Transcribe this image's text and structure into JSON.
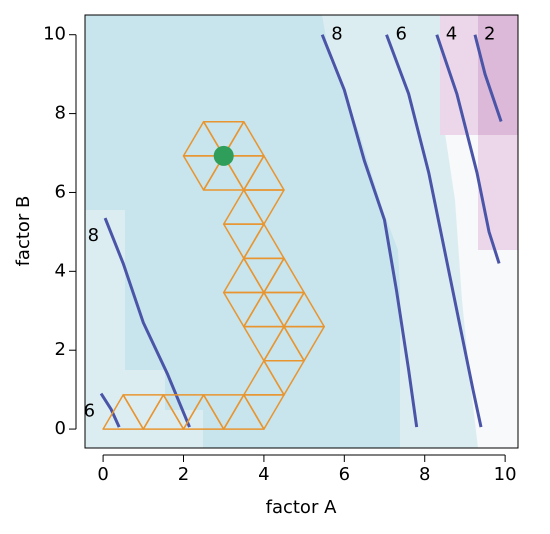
{
  "chart_data": {
    "type": "contour",
    "xlabel": "factor A",
    "ylabel": "factor B",
    "xlim": [
      -0.45,
      10.32
    ],
    "ylim": [
      -0.48,
      10.5
    ],
    "xticks": [
      0,
      2,
      4,
      6,
      8,
      10
    ],
    "yticks": [
      0,
      2,
      4,
      6,
      8,
      10
    ],
    "contour_color": "#4a55a8",
    "contours": [
      {
        "level": 8,
        "x": [
          5.45,
          6.0,
          6.5,
          7.0,
          7.3,
          7.6,
          7.8
        ],
        "y": [
          10,
          8.6,
          6.8,
          5.3,
          3.5,
          1.5,
          0.05
        ]
      },
      {
        "level": 6,
        "x": [
          7.05,
          7.6,
          8.1,
          8.5,
          8.9,
          9.2,
          9.4
        ],
        "y": [
          10,
          8.5,
          6.5,
          4.5,
          2.5,
          1.0,
          0.05
        ]
      },
      {
        "level": 4,
        "x": [
          8.3,
          8.8,
          9.3,
          9.6,
          9.85
        ],
        "y": [
          10,
          8.5,
          6.5,
          5.0,
          4.2
        ]
      },
      {
        "level": 2,
        "x": [
          9.25,
          9.5,
          9.9
        ],
        "y": [
          10,
          9.0,
          7.8
        ]
      },
      {
        "level": 8,
        "x": [
          0.05,
          0.5,
          1.0,
          1.6,
          2.15
        ],
        "y": [
          5.35,
          4.2,
          2.7,
          1.4,
          0.05
        ]
      },
      {
        "level": 6,
        "x": [
          -0.05,
          0.2,
          0.4
        ],
        "y": [
          0.9,
          0.5,
          0.05
        ]
      }
    ],
    "simplex_color": "#e8952f",
    "simplex": [
      {
        "x": [
          0,
          1,
          0.5
        ],
        "y": [
          0,
          0,
          0.866
        ]
      },
      {
        "x": [
          1,
          2,
          1.5
        ],
        "y": [
          0,
          0,
          0.866
        ]
      },
      {
        "x": [
          2,
          3,
          2.5
        ],
        "y": [
          0,
          0,
          0.866
        ]
      },
      {
        "x": [
          3,
          4,
          3.5
        ],
        "y": [
          0,
          0,
          0.866
        ]
      },
      {
        "x": [
          0.5,
          1.5,
          1
        ],
        "y": [
          0.866,
          0.866,
          0
        ]
      },
      {
        "x": [
          1.5,
          2.5,
          2
        ],
        "y": [
          0.866,
          0.866,
          0
        ]
      },
      {
        "x": [
          2.5,
          3.5,
          3
        ],
        "y": [
          0.866,
          0.866,
          0
        ]
      },
      {
        "x": [
          3.5,
          4.5,
          4
        ],
        "y": [
          0.866,
          0.866,
          0
        ]
      },
      {
        "x": [
          3.5,
          4.5,
          4
        ],
        "y": [
          0.866,
          0.866,
          1.732
        ]
      },
      {
        "x": [
          4,
          5,
          4.5
        ],
        "y": [
          1.732,
          1.732,
          0.866
        ]
      },
      {
        "x": [
          4,
          5,
          4.5
        ],
        "y": [
          1.732,
          1.732,
          2.598
        ]
      },
      {
        "x": [
          3.5,
          4.5,
          4
        ],
        "y": [
          2.598,
          2.598,
          1.732
        ]
      },
      {
        "x": [
          4.5,
          5.5,
          5
        ],
        "y": [
          2.598,
          2.598,
          1.732
        ]
      },
      {
        "x": [
          3.5,
          4.5,
          4
        ],
        "y": [
          2.598,
          2.598,
          3.464
        ]
      },
      {
        "x": [
          4.5,
          5.5,
          5
        ],
        "y": [
          2.598,
          2.598,
          3.464
        ]
      },
      {
        "x": [
          3,
          4,
          3.5
        ],
        "y": [
          3.464,
          3.464,
          2.598
        ]
      },
      {
        "x": [
          4,
          5,
          4.5
        ],
        "y": [
          3.464,
          3.464,
          2.598
        ]
      },
      {
        "x": [
          3,
          4,
          3.5
        ],
        "y": [
          3.464,
          3.464,
          4.33
        ]
      },
      {
        "x": [
          4,
          5,
          4.5
        ],
        "y": [
          3.464,
          3.464,
          4.33
        ]
      },
      {
        "x": [
          3.5,
          4.5,
          4
        ],
        "y": [
          4.33,
          4.33,
          3.464
        ]
      },
      {
        "x": [
          3.5,
          4.5,
          4
        ],
        "y": [
          4.33,
          4.33,
          5.196
        ]
      },
      {
        "x": [
          3,
          4,
          3.5
        ],
        "y": [
          5.196,
          5.196,
          4.33
        ]
      },
      {
        "x": [
          3,
          4,
          3.5
        ],
        "y": [
          5.196,
          5.196,
          6.062
        ]
      },
      {
        "x": [
          3.5,
          4.5,
          4
        ],
        "y": [
          6.062,
          6.062,
          5.196
        ]
      },
      {
        "x": [
          3.5,
          4.5,
          4
        ],
        "y": [
          6.062,
          6.062,
          6.928
        ]
      },
      {
        "x": [
          3,
          4,
          3.5
        ],
        "y": [
          6.928,
          6.928,
          6.062
        ]
      },
      {
        "x": [
          2.5,
          3.5,
          3
        ],
        "y": [
          6.062,
          6.062,
          6.928
        ]
      },
      {
        "x": [
          2,
          3,
          2.5
        ],
        "y": [
          6.928,
          6.928,
          6.062
        ]
      },
      {
        "x": [
          2,
          3,
          2.5
        ],
        "y": [
          6.928,
          6.928,
          7.794
        ]
      },
      {
        "x": [
          3,
          4,
          3.5
        ],
        "y": [
          6.928,
          6.928,
          7.794
        ]
      },
      {
        "x": [
          2.5,
          3.5,
          3
        ],
        "y": [
          7.794,
          7.794,
          6.928
        ]
      }
    ],
    "optimum": {
      "x": 3,
      "y": 6.928,
      "color": "#2e9e5a"
    }
  }
}
